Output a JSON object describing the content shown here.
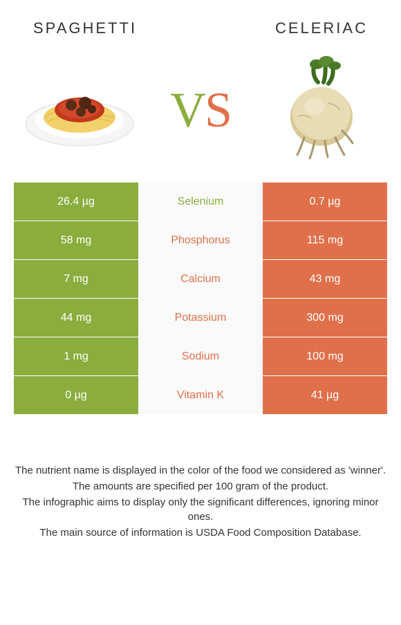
{
  "foods": {
    "left": {
      "name": "spaghetti",
      "color": "#8aad3d"
    },
    "right": {
      "name": "celeriac",
      "color": "#e0704a"
    }
  },
  "vs": {
    "v": "V",
    "s": "S"
  },
  "colors": {
    "left_bg": "#8aad3d",
    "right_bg": "#e0704a",
    "row_text": "#ffffff"
  },
  "rows": [
    {
      "left": "26.4 µg",
      "label": "Selenium",
      "right": "0.7 µg",
      "winner": "left"
    },
    {
      "left": "58 mg",
      "label": "Phosphorus",
      "right": "115 mg",
      "winner": "right"
    },
    {
      "left": "7 mg",
      "label": "Calcium",
      "right": "43 mg",
      "winner": "right"
    },
    {
      "left": "44 mg",
      "label": "Potassium",
      "right": "300 mg",
      "winner": "right"
    },
    {
      "left": "1 mg",
      "label": "Sodium",
      "right": "100 mg",
      "winner": "right"
    },
    {
      "left": "0 µg",
      "label": "Vitamin K",
      "right": "41 µg",
      "winner": "right"
    }
  ],
  "footer": [
    "The nutrient name is displayed in the color of the food we considered as 'winner'.",
    "The amounts are specified per 100 gram of the product.",
    "The infographic aims to display only the significant differences, ignoring minor ones.",
    "The main source of information is USDA Food Composition Database."
  ]
}
